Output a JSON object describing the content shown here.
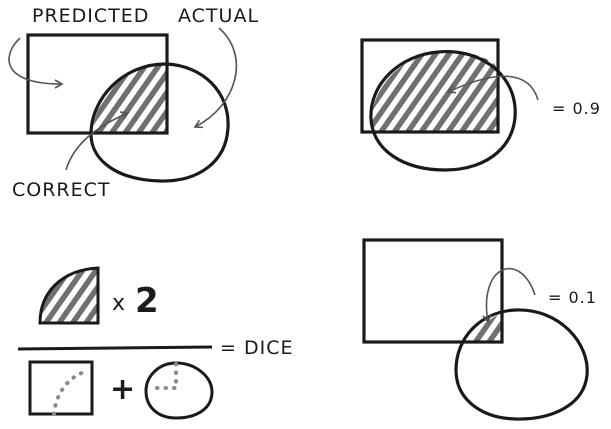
{
  "labels": {
    "predicted": "PREDICTED",
    "actual": "ACTUAL",
    "correct": "CORRECT",
    "score_high": "= 0.9",
    "score_low": "= 0.1",
    "times": "x",
    "two": "2",
    "plus": "+",
    "dice": "= DICE"
  },
  "colors": {
    "ink": "#1a1a1a",
    "hatch": "#707070",
    "dots": "#8a8a8a",
    "arrow": "#555555",
    "background": "#ffffff"
  }
}
